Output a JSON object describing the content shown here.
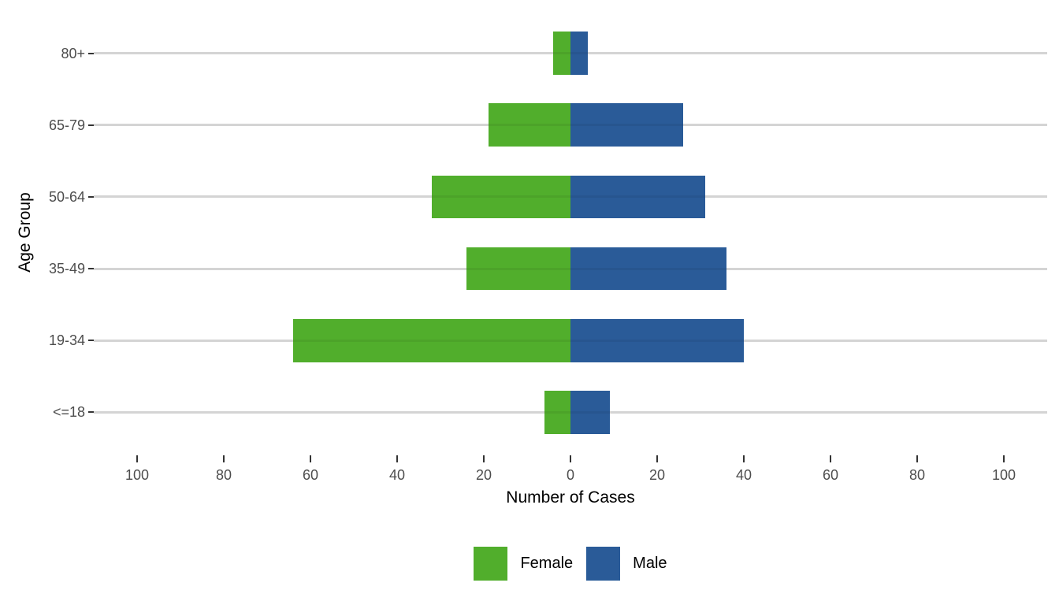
{
  "chart_data": {
    "type": "bar",
    "variant": "diverging-horizontal-pyramid",
    "title": "",
    "xlabel": "Number of Cases",
    "ylabel": "Age Group",
    "categories": [
      "80+",
      "65-79",
      "50-64",
      "35-49",
      "19-34",
      "<=18"
    ],
    "series": [
      {
        "name": "Female",
        "side": "left",
        "color": "#51ae2c",
        "values": [
          4,
          19,
          32,
          24,
          64,
          6
        ]
      },
      {
        "name": "Male",
        "side": "right",
        "color": "#2a5b98",
        "values": [
          4,
          26,
          31,
          36,
          40,
          9
        ]
      }
    ],
    "x_ticks": [
      -100,
      -80,
      -60,
      -40,
      -20,
      0,
      20,
      40,
      60,
      80,
      100
    ],
    "x_tick_labels": [
      "100",
      "80",
      "60",
      "40",
      "20",
      "0",
      "20",
      "40",
      "60",
      "80",
      "100"
    ],
    "xlim": [
      -110,
      110
    ],
    "grid": "horizontal-major-only",
    "legend_position": "bottom-center"
  },
  "legend": {
    "items": [
      {
        "label": "Female",
        "color": "#51ae2c"
      },
      {
        "label": "Male",
        "color": "#2a5b98"
      }
    ]
  },
  "style": {
    "bar_female": "#51ae2c",
    "bar_male": "#2a5b98",
    "gridline": "#d4d4d4",
    "tick_mark": "#333333",
    "tick_label": "#4d4d4d",
    "axis_title": "#000000",
    "background": "#ffffff"
  }
}
